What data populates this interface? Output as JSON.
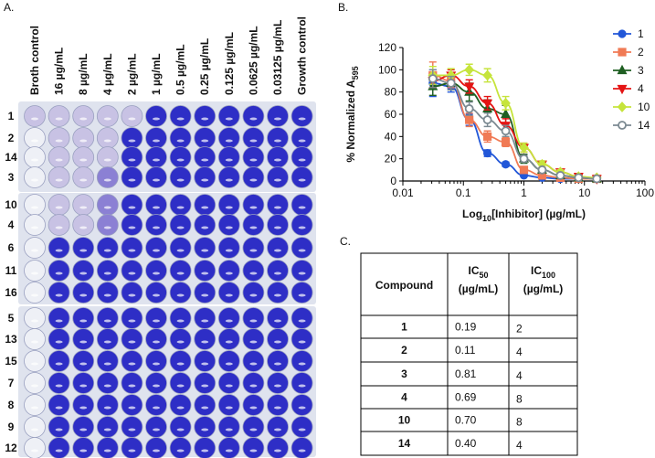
{
  "panel_labels": [
    "A.",
    "B.",
    "C."
  ],
  "plate": {
    "column_labels": [
      "Broth control",
      "16 µg/mL",
      "8 µg/mL",
      "4 µg/mL",
      "2 µg/mL",
      "1 µg/mL",
      "0.5 µg/mL",
      "0.25 µg/mL",
      "0.125 µg/mL",
      "0.0625 µg/mL",
      "0.03125 µg/mL",
      "Growth control"
    ],
    "row_labels": [
      "1",
      "2",
      "14",
      "3",
      "10",
      "4",
      "6",
      "11",
      "16",
      "5",
      "13",
      "15",
      "7",
      "8",
      "9",
      "12"
    ]
  },
  "chart_data": {
    "type": "scatter",
    "x_scale": "log",
    "y_label": {
      "main": "% Normalized A",
      "sub": "595"
    },
    "x_label": {
      "pre": "Log",
      "sub": "10",
      "post": "[Inhibitor] (µg/mL)"
    },
    "xlim": [
      0.01,
      100
    ],
    "xticks": [
      0.01,
      0.1,
      1,
      10,
      100
    ],
    "ylim": [
      0,
      120
    ],
    "yticks": [
      0,
      20,
      40,
      60,
      80,
      100,
      120
    ],
    "legend": "upper right",
    "x": [
      0.03125,
      0.0625,
      0.125,
      0.25,
      0.5,
      1,
      2,
      4,
      8,
      16
    ],
    "series": [
      {
        "name": "1",
        "color": "#2257d8",
        "marker": "circle",
        "values": [
          88,
          85,
          55,
          25,
          15,
          5,
          3,
          2,
          2,
          2
        ],
        "errors": [
          12,
          5,
          5,
          3,
          2,
          1,
          1,
          1,
          1,
          1
        ]
      },
      {
        "name": "2",
        "color": "#f07a55",
        "marker": "square",
        "values": [
          95,
          90,
          55,
          40,
          35,
          10,
          5,
          3,
          2,
          2
        ],
        "errors": [
          12,
          6,
          6,
          5,
          4,
          2,
          1,
          1,
          1,
          1
        ]
      },
      {
        "name": "3",
        "color": "#1f5f22",
        "marker": "triangle-up",
        "values": [
          85,
          88,
          80,
          65,
          60,
          20,
          10,
          5,
          3,
          2
        ],
        "errors": [
          8,
          6,
          8,
          8,
          8,
          4,
          2,
          1,
          1,
          1
        ]
      },
      {
        "name": "4",
        "color": "#e41414",
        "marker": "triangle-down",
        "values": [
          90,
          95,
          85,
          70,
          50,
          30,
          15,
          8,
          4,
          2
        ],
        "errors": [
          6,
          5,
          6,
          6,
          6,
          4,
          3,
          2,
          1,
          1
        ]
      },
      {
        "name": "10",
        "color": "#c6e43c",
        "marker": "diamond",
        "values": [
          95,
          95,
          100,
          95,
          70,
          30,
          15,
          8,
          4,
          3
        ],
        "errors": [
          8,
          6,
          5,
          6,
          6,
          4,
          3,
          2,
          1,
          1
        ]
      },
      {
        "name": "14",
        "color": "#7c8a92",
        "marker": "open-circle",
        "values": [
          92,
          88,
          65,
          55,
          45,
          20,
          10,
          5,
          3,
          2
        ],
        "errors": [
          8,
          6,
          6,
          6,
          5,
          3,
          2,
          1,
          1,
          1
        ]
      }
    ]
  },
  "table": {
    "header": [
      {
        "main": "Compound"
      },
      {
        "main": "IC",
        "sub": "50",
        "unit": "(µg/mL)"
      },
      {
        "main": "IC",
        "sub": "100",
        "unit": "(µg/mL)"
      }
    ],
    "rows": [
      [
        "1",
        "0.19",
        "2"
      ],
      [
        "2",
        "0.11",
        "4"
      ],
      [
        "3",
        "0.81",
        "4"
      ],
      [
        "4",
        "0.69",
        "8"
      ],
      [
        "10",
        "0.70",
        "8"
      ],
      [
        "14",
        "0.40",
        "4"
      ]
    ]
  }
}
